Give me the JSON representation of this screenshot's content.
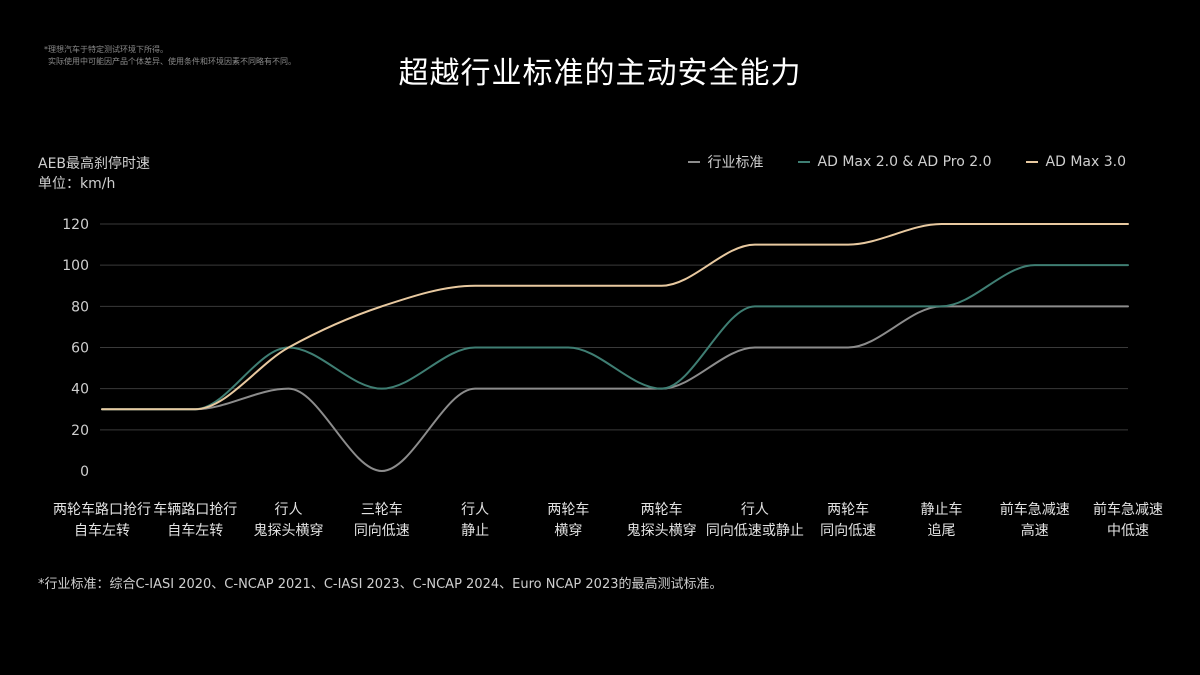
{
  "disclaimer": {
    "line1": "*理想汽车于特定测试环境下所得。",
    "line2": "实际使用中可能因产品个体差异、使用条件和环境因素不同略有不同。"
  },
  "title": "超越行业标准的主动安全能力",
  "footnote": "*行业标准：综合C-IASI 2020、C-NCAP 2021、C-IASI 2023、C-NCAP 2024、Euro NCAP 2023的最高测试标准。",
  "chart_data": {
    "type": "line",
    "title": "超越行业标准的主动安全能力",
    "ylabel_line1": "AEB最高刹停时速",
    "ylabel_line2": "单位：km/h",
    "ylim": [
      0,
      120
    ],
    "yticks": [
      "0",
      "20",
      "40",
      "60",
      "80",
      "100",
      "120"
    ],
    "grid": true,
    "legend": "top-right",
    "categories": [
      [
        "两轮车路口抢行",
        "自车左转"
      ],
      [
        "车辆路口抢行",
        "自车左转"
      ],
      [
        "行人",
        "鬼探头横穿"
      ],
      [
        "三轮车",
        "同向低速"
      ],
      [
        "行人",
        "静止"
      ],
      [
        "两轮车",
        "横穿"
      ],
      [
        "两轮车",
        "鬼探头横穿"
      ],
      [
        "行人",
        "同向低速或静止"
      ],
      [
        "两轮车",
        "同向低速"
      ],
      [
        "静止车",
        "追尾"
      ],
      [
        "前车急减速",
        "高速"
      ],
      [
        "前车急减速",
        "中低速"
      ]
    ],
    "series": [
      {
        "name": "行业标准",
        "color": "#8c8c8c",
        "values": [
          30,
          30,
          40,
          0,
          40,
          40,
          40,
          60,
          60,
          80,
          80,
          80
        ]
      },
      {
        "name": "AD Max 2.0 & AD Pro 2.0",
        "color": "#3f7e73",
        "values": [
          30,
          30,
          60,
          40,
          60,
          60,
          40,
          80,
          80,
          80,
          100,
          100
        ]
      },
      {
        "name": "AD Max 3.0",
        "color": "#e8c9a0",
        "values": [
          30,
          30,
          60,
          80,
          90,
          90,
          90,
          110,
          110,
          120,
          120,
          120
        ]
      }
    ]
  }
}
